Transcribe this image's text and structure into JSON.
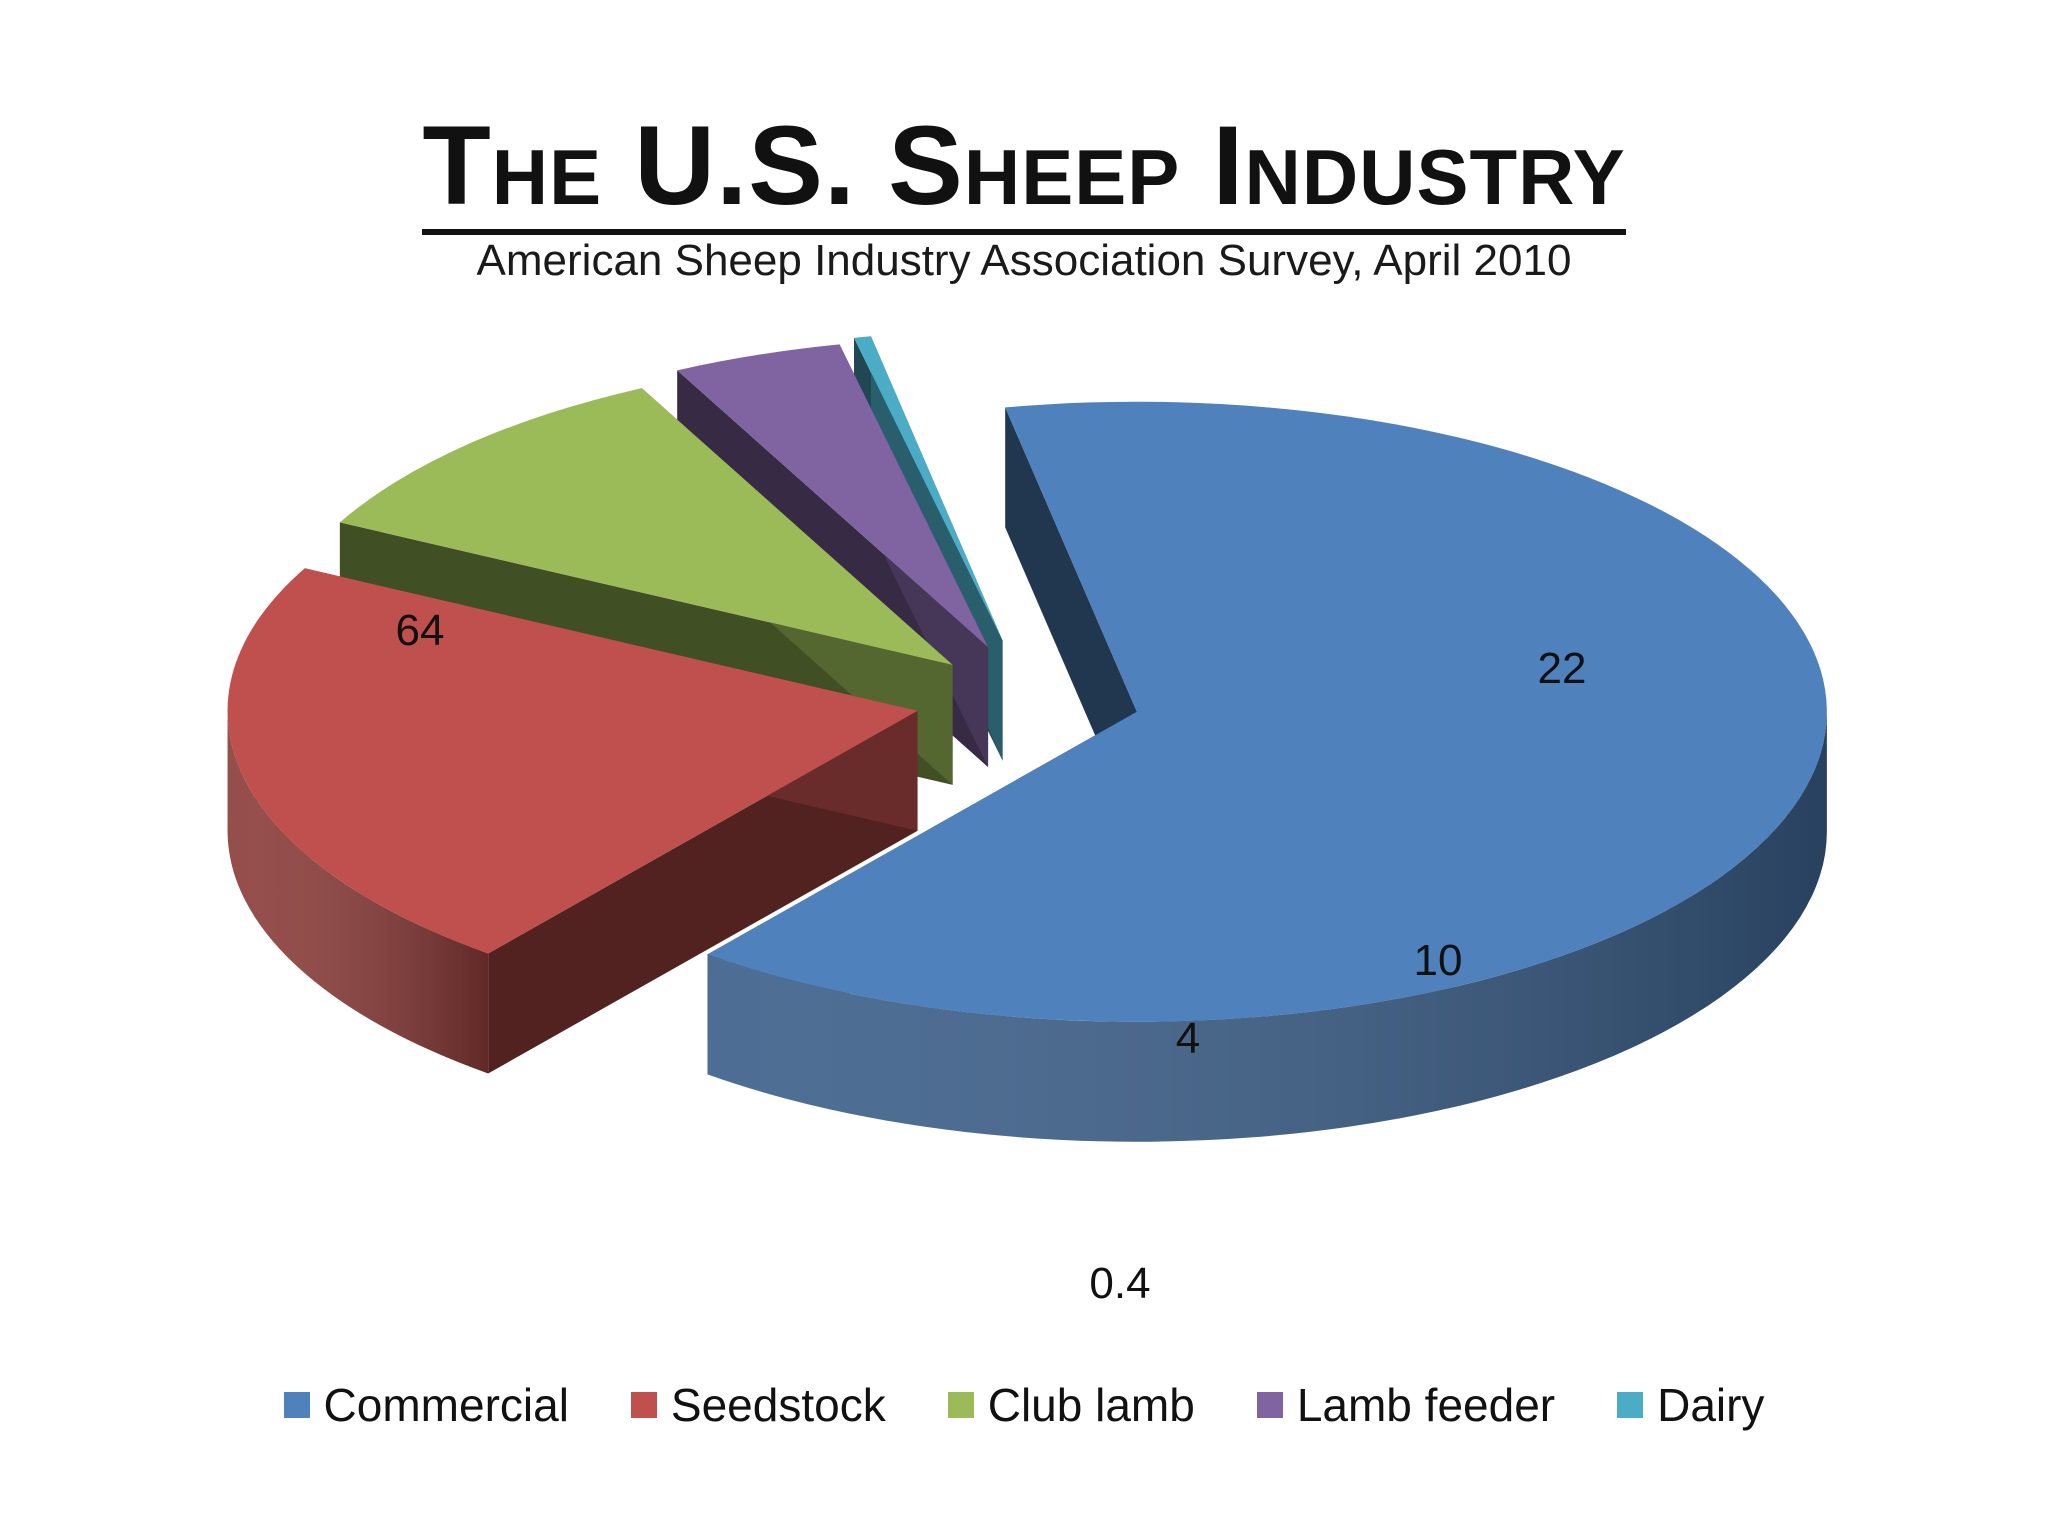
{
  "title": "The U.S. Sheep Industry",
  "subtitle": "American Sheep Industry Association Survey, April 2010",
  "chart_data": {
    "type": "pie",
    "style": "3d-exploded",
    "categories": [
      "Commercial",
      "Seedstock",
      "Club lamb",
      "Lamb feeder",
      "Dairy"
    ],
    "values": [
      64,
      22,
      10,
      4,
      0.4
    ],
    "data_labels": [
      "64",
      "22",
      "10",
      "4",
      "0.4"
    ],
    "colors": [
      "#4F81BD",
      "#C0504D",
      "#9BBB59",
      "#8064A2",
      "#4BACC6"
    ],
    "legend_position": "bottom"
  }
}
